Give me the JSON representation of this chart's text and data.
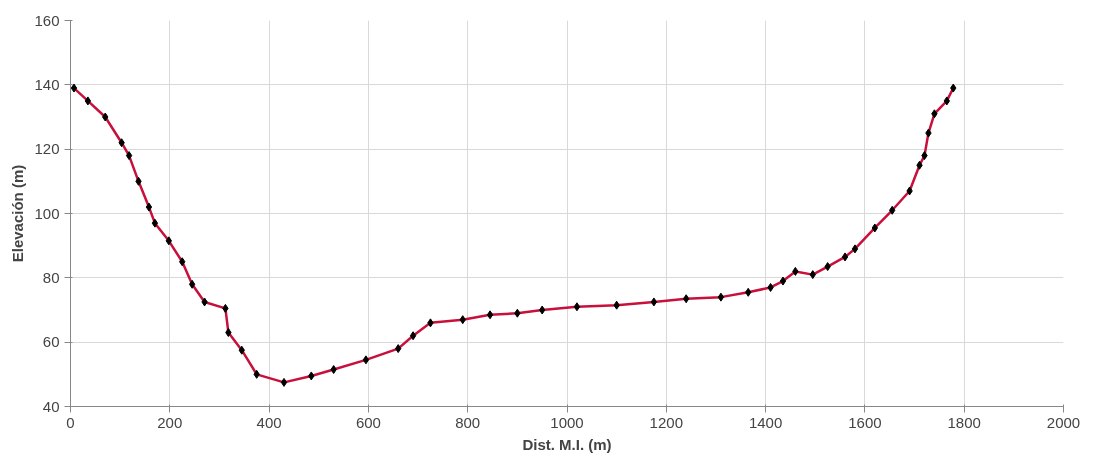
{
  "chart_data": {
    "type": "line",
    "xlabel": "Dist. M.I. (m)",
    "ylabel": "Elevación (m)",
    "x": [
      7,
      35,
      70,
      103,
      118,
      137,
      158,
      170,
      198,
      225,
      245,
      270,
      312,
      318,
      345,
      375,
      430,
      485,
      530,
      595,
      660,
      690,
      725,
      790,
      845,
      900,
      950,
      1020,
      1100,
      1175,
      1240,
      1310,
      1365,
      1410,
      1435,
      1460,
      1495,
      1525,
      1560,
      1580,
      1620,
      1655,
      1690,
      1710,
      1720,
      1728,
      1740,
      1765,
      1778
    ],
    "series": [
      {
        "color": "#c8103c",
        "values": [
          139,
          135,
          130,
          122,
          118,
          110,
          102,
          97,
          91.5,
          85,
          78,
          72.5,
          70.5,
          63,
          57.5,
          50,
          47.5,
          49.5,
          51.5,
          54.5,
          58,
          62,
          66,
          67,
          68.5,
          69,
          70,
          71,
          71.5,
          72.5,
          73.5,
          74,
          75.5,
          77,
          79,
          82,
          81,
          83.5,
          86.5,
          89,
          95.5,
          101,
          107,
          115,
          118,
          125,
          131,
          135,
          139
        ]
      }
    ],
    "xlim": [
      0,
      2000
    ],
    "xticks": [
      0,
      200,
      400,
      600,
      800,
      1000,
      1200,
      1400,
      1600,
      1800,
      2000
    ],
    "ylim": [
      40,
      160
    ],
    "yticks": [
      40,
      60,
      80,
      100,
      120,
      140,
      160
    ],
    "grid": true,
    "marker": "diamond",
    "line_style": "solid"
  }
}
